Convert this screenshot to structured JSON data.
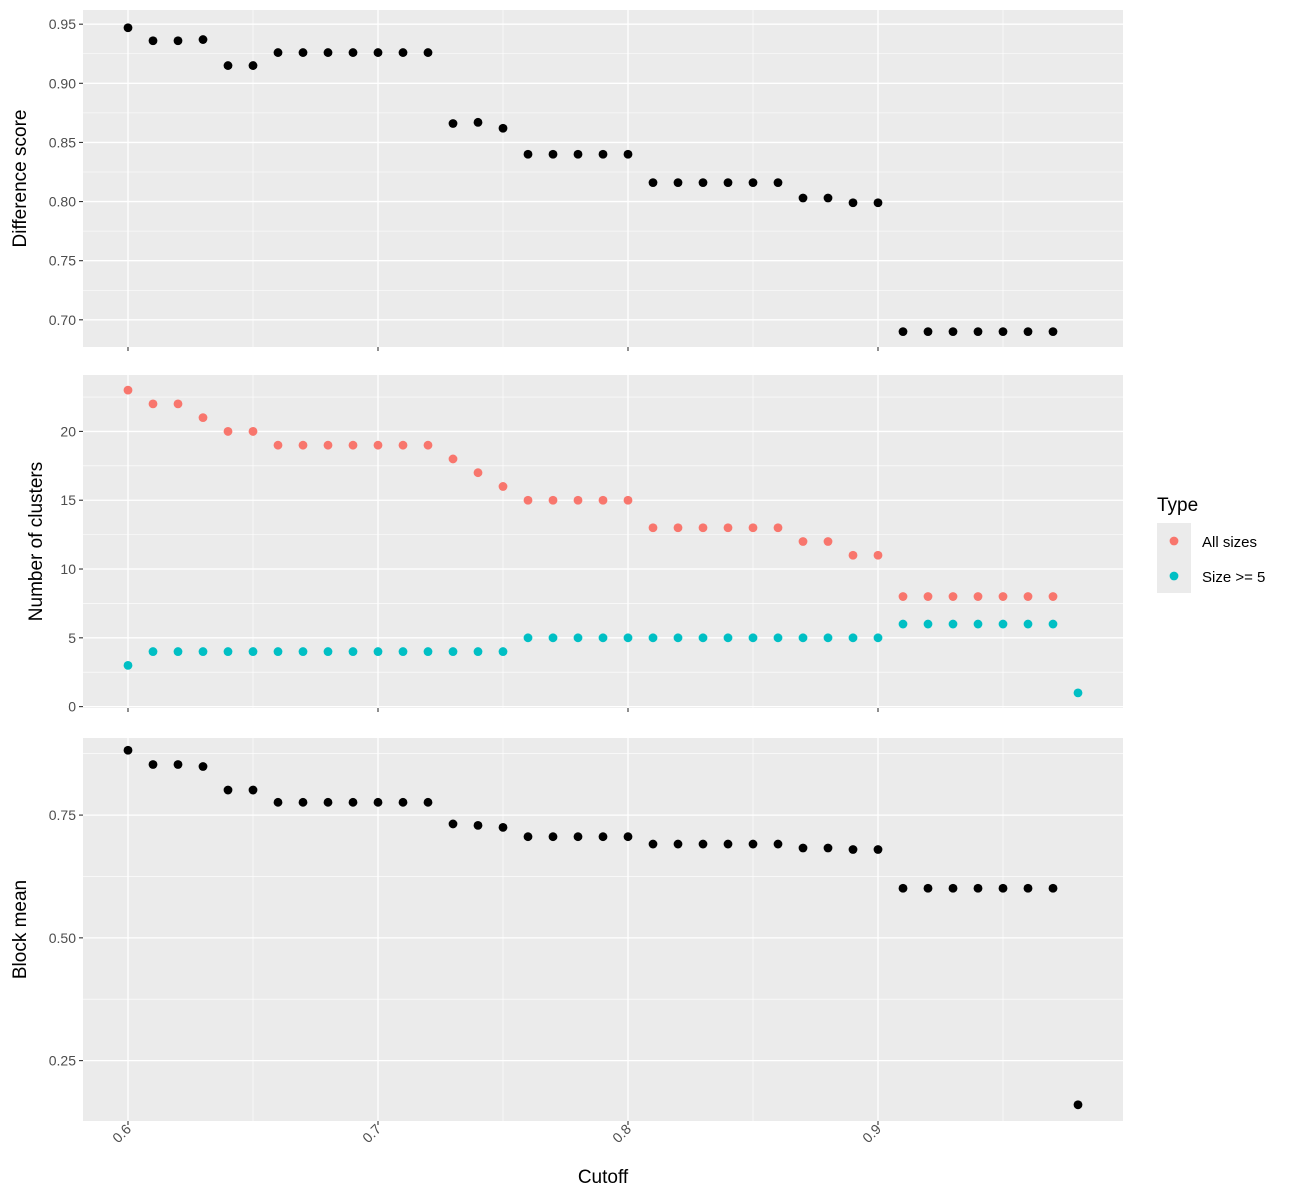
{
  "chart_data": {
    "type": "scatter",
    "x_axis": {
      "label": "Cutoff",
      "range": [
        0.582,
        0.998
      ],
      "ticks": [
        0.6,
        0.7,
        0.8,
        0.9
      ],
      "tick_labels": [
        "0.6",
        "0.7",
        "0.8",
        "0.9"
      ],
      "tick_label_rotation_deg": -45
    },
    "x": [
      0.6,
      0.61,
      0.62,
      0.63,
      0.64,
      0.65,
      0.66,
      0.67,
      0.68,
      0.69,
      0.7,
      0.71,
      0.72,
      0.73,
      0.74,
      0.75,
      0.76,
      0.77,
      0.78,
      0.79,
      0.8,
      0.81,
      0.82,
      0.83,
      0.84,
      0.85,
      0.86,
      0.87,
      0.88,
      0.89,
      0.9,
      0.91,
      0.92,
      0.93,
      0.94,
      0.95,
      0.96,
      0.97,
      0.98
    ],
    "grid": true,
    "background": "#ebebeb",
    "panels": [
      {
        "ylabel": "Difference score",
        "ylim": [
          0.677,
          0.962
        ],
        "yticks": [
          0.7,
          0.75,
          0.8,
          0.85,
          0.9,
          0.95
        ],
        "ytick_labels": [
          "0.70",
          "0.75",
          "0.80",
          "0.85",
          "0.90",
          "0.95"
        ],
        "series": [
          {
            "color": "#000000",
            "values": [
              0.947,
              0.936,
              0.936,
              0.937,
              0.915,
              0.915,
              0.926,
              0.926,
              0.926,
              0.926,
              0.926,
              0.926,
              0.926,
              0.866,
              0.867,
              0.862,
              0.84,
              0.84,
              0.84,
              0.84,
              0.84,
              0.816,
              0.816,
              0.816,
              0.816,
              0.816,
              0.816,
              0.803,
              0.803,
              0.799,
              0.799,
              0.69,
              0.69,
              0.69,
              0.69,
              0.69,
              0.69,
              0.69,
              null
            ]
          }
        ]
      },
      {
        "ylabel": "Number of clusters",
        "ylim": [
          -0.1,
          24.1
        ],
        "yticks": [
          0,
          5,
          10,
          15,
          20
        ],
        "ytick_labels": [
          "0",
          "5",
          "10",
          "15",
          "20"
        ],
        "series": [
          {
            "name": "All sizes",
            "color": "#f8766d",
            "values": [
              23,
              22,
              22,
              21,
              20,
              20,
              19,
              19,
              19,
              19,
              19,
              19,
              19,
              18,
              17,
              16,
              15,
              15,
              15,
              15,
              15,
              13,
              13,
              13,
              13,
              13,
              13,
              12,
              12,
              11,
              11,
              8,
              8,
              8,
              8,
              8,
              8,
              8,
              null
            ]
          },
          {
            "name": "Size >= 5",
            "color": "#00bfc4",
            "values": [
              3,
              4,
              4,
              4,
              4,
              4,
              4,
              4,
              4,
              4,
              4,
              4,
              4,
              4,
              4,
              4,
              5,
              5,
              5,
              5,
              5,
              5,
              5,
              5,
              5,
              5,
              5,
              5,
              5,
              5,
              5,
              6,
              6,
              6,
              6,
              6,
              6,
              6,
              1
            ]
          }
        ]
      },
      {
        "ylabel": "Block mean",
        "ylim": [
          0.127,
          0.907
        ],
        "yticks": [
          0.25,
          0.5,
          0.75
        ],
        "ytick_labels": [
          "0.25",
          "0.50",
          "0.75"
        ],
        "series": [
          {
            "color": "#000000",
            "values": [
              0.882,
              0.853,
              0.853,
              0.849,
              0.801,
              0.801,
              0.776,
              0.776,
              0.776,
              0.776,
              0.776,
              0.776,
              0.776,
              0.732,
              0.729,
              0.725,
              0.706,
              0.706,
              0.706,
              0.706,
              0.706,
              0.691,
              0.691,
              0.691,
              0.691,
              0.691,
              0.691,
              0.683,
              0.683,
              0.68,
              0.68,
              0.601,
              0.601,
              0.601,
              0.601,
              0.601,
              0.601,
              0.601,
              0.16
            ]
          }
        ]
      }
    ],
    "legend": {
      "title": "Type",
      "placement": "right",
      "entries": [
        {
          "label": "All sizes",
          "color": "#f8766d"
        },
        {
          "label": "Size >= 5",
          "color": "#00bfc4"
        }
      ]
    }
  }
}
